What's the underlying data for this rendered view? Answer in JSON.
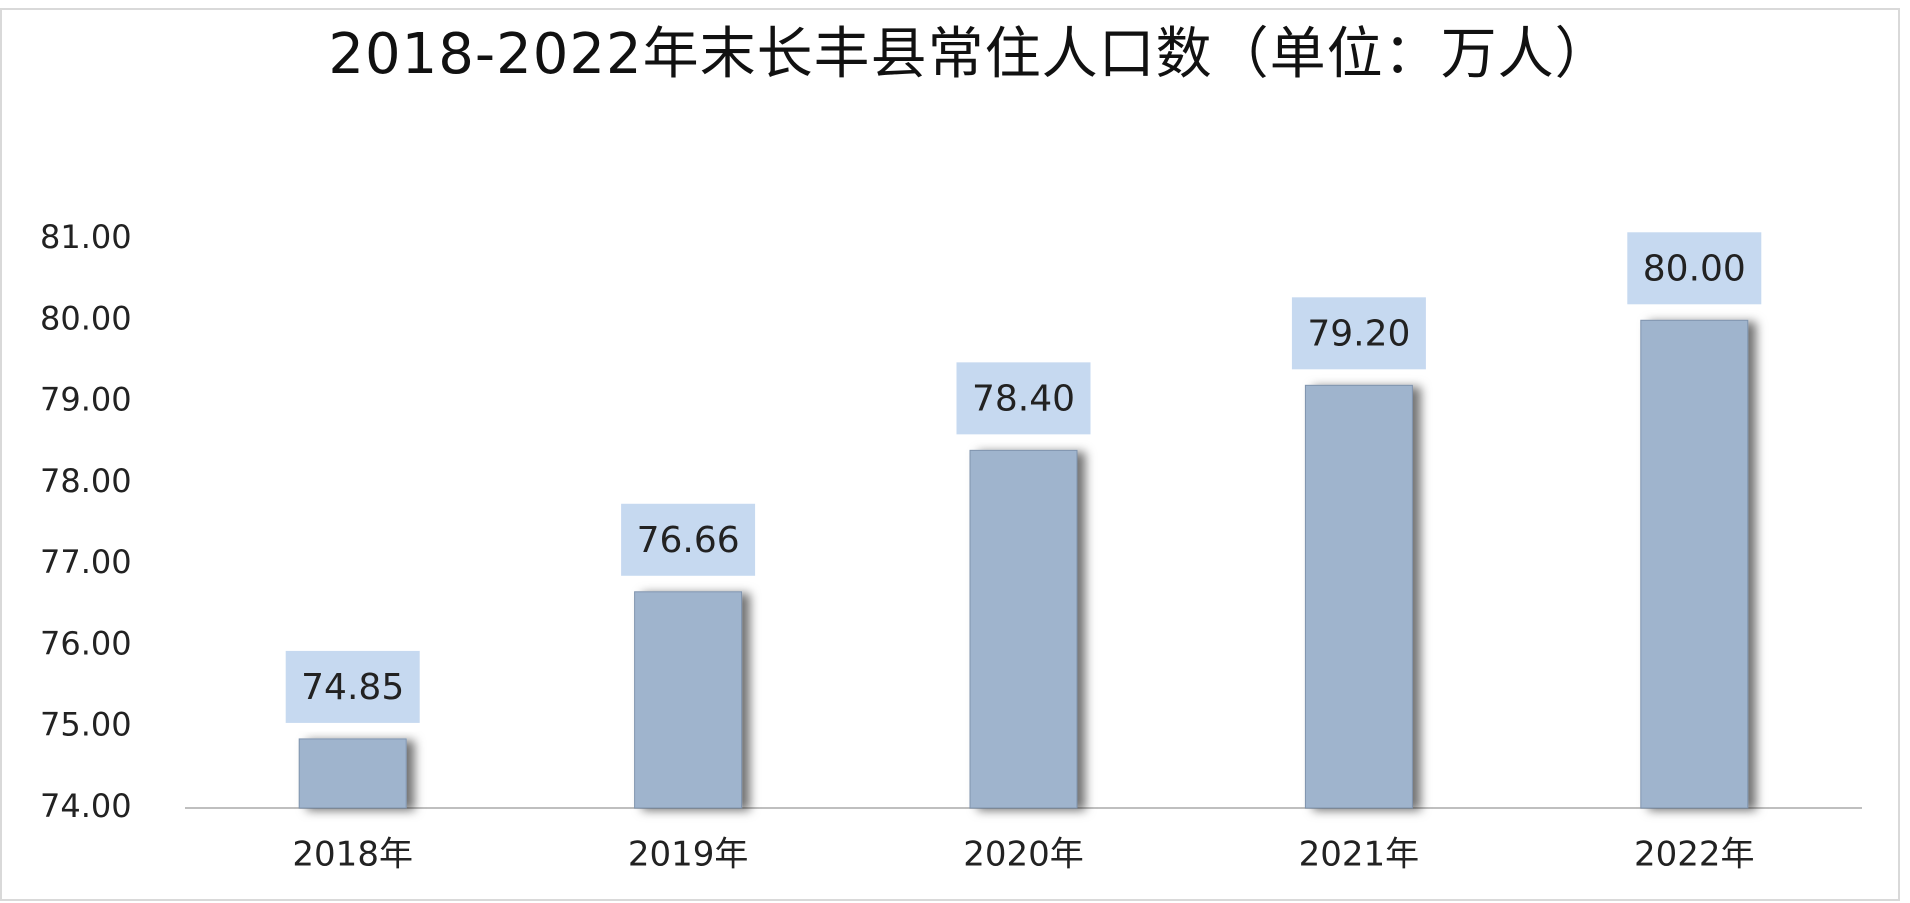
{
  "chart_data": {
    "type": "bar",
    "title": "2018-2022年末长丰县常住人口数（单位：万人）",
    "categories": [
      "2018年",
      "2019年",
      "2020年",
      "2021年",
      "2022年"
    ],
    "values": [
      74.85,
      76.66,
      78.4,
      79.2,
      80
    ],
    "value_labels": [
      "74.85",
      "76.66",
      "78.40",
      "79.20",
      "80.00"
    ],
    "color": "#9fb4cd",
    "ylim": [
      74,
      81
    ],
    "yticks": [
      {
        "value": 74,
        "label": "74.00"
      },
      {
        "value": 75,
        "label": "75.00"
      },
      {
        "value": 76,
        "label": "76.00"
      },
      {
        "value": 77,
        "label": "77.00"
      },
      {
        "value": 78,
        "label": "78.00"
      },
      {
        "value": 79,
        "label": "79.00"
      },
      {
        "value": 80,
        "label": "80.00"
      },
      {
        "value": 81,
        "label": "81.00"
      }
    ],
    "grid": false
  }
}
